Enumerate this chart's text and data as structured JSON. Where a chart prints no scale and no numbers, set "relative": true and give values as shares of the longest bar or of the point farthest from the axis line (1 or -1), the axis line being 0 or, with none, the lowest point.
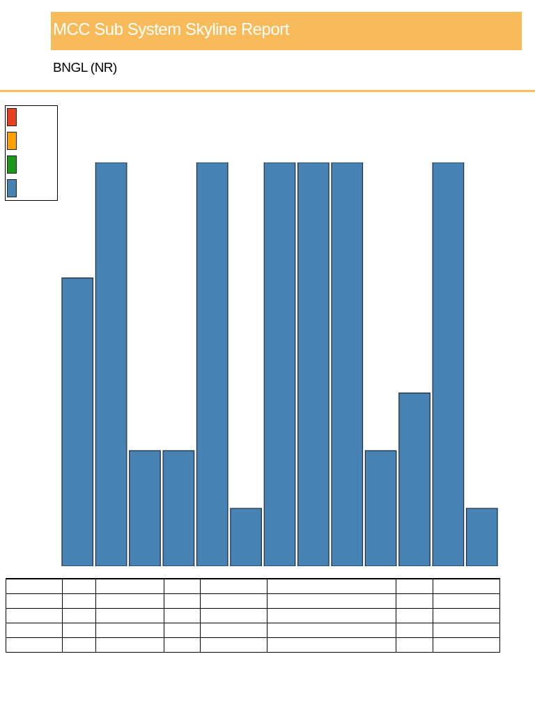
{
  "chart_data": {
    "type": "bar",
    "title": "MCC Sub System Skyline Report",
    "subtitle": "BNGL (NR)",
    "relative": true,
    "categories": [
      null,
      null,
      null,
      null,
      null,
      null,
      null,
      null,
      null,
      null,
      null,
      null,
      null
    ],
    "series": [
      {
        "color": "#4682b4",
        "values": [
          0.714,
          1,
          0.286,
          0.286,
          1,
          0.143,
          1,
          1,
          1,
          0.286,
          0.429,
          1,
          0.143
        ]
      }
    ]
  }
}
